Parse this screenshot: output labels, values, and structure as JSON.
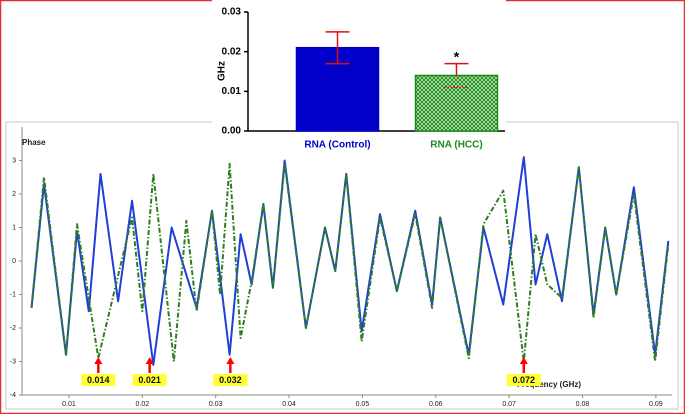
{
  "chart_data": [
    {
      "type": "line",
      "ylabel": "Phase",
      "xlabel": "Frequency (GHz)",
      "xlim": [
        0.0036,
        0.0922
      ],
      "ylim": [
        -4,
        4
      ],
      "xticks": [
        0.01,
        0.02,
        0.03,
        0.04,
        0.05,
        0.06,
        0.07,
        0.08,
        0.09
      ],
      "yticks": [
        3,
        2,
        1,
        0,
        -1,
        -2,
        -3,
        -4
      ],
      "series": [
        {
          "color": "#1f3fd8",
          "dash": "solid",
          "x": [
            0.0049,
            0.0066,
            0.0096,
            0.0111,
            0.0127,
            0.0143,
            0.0167,
            0.0186,
            0.0215,
            0.024,
            0.0274,
            0.0295,
            0.0319,
            0.0334,
            0.0349,
            0.0365,
            0.0378,
            0.0394,
            0.0423,
            0.0449,
            0.0463,
            0.0478,
            0.0499,
            0.0524,
            0.0547,
            0.0572,
            0.0595,
            0.0606,
            0.0645,
            0.0665,
            0.0692,
            0.0704,
            0.072,
            0.0736,
            0.0752,
            0.0772,
            0.0795,
            0.0815,
            0.0831,
            0.0846,
            0.087,
            0.0899,
            0.0917
          ],
          "values": [
            -1.4,
            2.3,
            -2.8,
            0.9,
            -1.5,
            2.6,
            -1.2,
            1.8,
            -3.1,
            1.0,
            -1.4,
            1.5,
            -2.8,
            0.8,
            -0.7,
            1.7,
            -0.8,
            3.0,
            -2.0,
            1.0,
            -0.3,
            2.6,
            -2.1,
            1.4,
            -0.9,
            1.5,
            -1.3,
            1.3,
            -2.8,
            1.0,
            -1.3,
            0.6,
            3.1,
            -0.7,
            0.8,
            -1.2,
            2.8,
            -1.6,
            1.0,
            -1.0,
            2.2,
            -2.8,
            0.6
          ]
        },
        {
          "color": "#2e7d1e",
          "dash": "dash-dot",
          "x": [
            0.0049,
            0.0066,
            0.0096,
            0.0111,
            0.014,
            0.0186,
            0.02,
            0.0215,
            0.0243,
            0.026,
            0.0274,
            0.0295,
            0.0306,
            0.0319,
            0.0334,
            0.0349,
            0.0365,
            0.0378,
            0.0394,
            0.0423,
            0.0449,
            0.0463,
            0.0478,
            0.0499,
            0.0524,
            0.0547,
            0.0572,
            0.0595,
            0.0606,
            0.0645,
            0.0665,
            0.0692,
            0.072,
            0.0736,
            0.0752,
            0.0772,
            0.0795,
            0.0815,
            0.0831,
            0.0846,
            0.087,
            0.0899,
            0.0917
          ],
          "values": [
            -1.4,
            2.5,
            -2.8,
            1.1,
            -2.9,
            1.3,
            -1.5,
            2.6,
            -3.0,
            1.2,
            -1.5,
            1.5,
            -1.0,
            2.9,
            -2.3,
            -0.6,
            1.7,
            -0.8,
            2.9,
            -2.0,
            1.0,
            -0.3,
            2.6,
            -2.4,
            1.3,
            -0.9,
            1.4,
            -1.4,
            1.3,
            -2.9,
            1.1,
            2.1,
            -3.0,
            0.8,
            -0.7,
            -1.1,
            2.8,
            -1.7,
            1.0,
            -1.0,
            2.0,
            -3.0,
            0.5
          ]
        }
      ],
      "markers": [
        0.014,
        0.021,
        0.032,
        0.072
      ],
      "marker_color": "#ff0000",
      "marker_label_color": "#ffff33"
    },
    {
      "type": "bar",
      "ylabel": "GHz",
      "categories": [
        "RNA (Control)",
        "RNA (HCC)"
      ],
      "values": [
        0.021,
        0.014
      ],
      "errors": [
        0.004,
        0.003
      ],
      "colors": [
        "#0000c8",
        "#1a8c1a"
      ],
      "patterns": [
        "solid",
        "hatch"
      ],
      "lower_cap_styles": [
        "solid",
        "dotted"
      ],
      "error_color": "#e01010",
      "value_annotations": [
        null,
        "*"
      ],
      "ylim": [
        0,
        0.03
      ],
      "yticks": [
        {
          "value": 0,
          "label": "0.00"
        },
        0.01,
        0.02,
        0.03
      ]
    }
  ]
}
